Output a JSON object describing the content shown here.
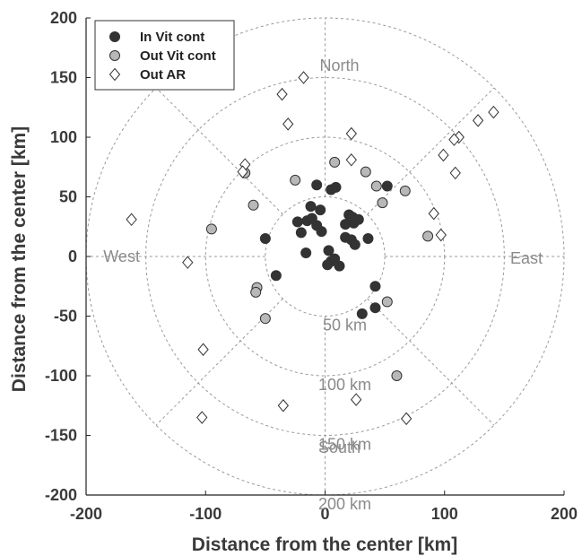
{
  "chart_data": {
    "type": "scatter",
    "title": "",
    "xlabel": "Distance from the center [km]",
    "ylabel": "Distance from the center [km]",
    "xlim": [
      -200,
      200
    ],
    "ylim": [
      -200,
      200
    ],
    "xticks": [
      -200,
      -100,
      0,
      100,
      200
    ],
    "yticks": [
      200,
      150,
      100,
      50,
      0,
      -50,
      -100,
      -150,
      -200
    ],
    "grid": false,
    "legend_position": "top-left",
    "polar_grid": {
      "ring_radii": [
        50,
        100,
        150,
        200
      ],
      "ring_labels": [
        "50 km",
        "100 km",
        "150 km",
        "200 km"
      ],
      "spoke_angles_deg": [
        0,
        45,
        90,
        135,
        180,
        225,
        270,
        315
      ],
      "directions": {
        "north": "North",
        "east": "East",
        "south": "South",
        "west": "West"
      }
    },
    "series": [
      {
        "name": "In Vit cont",
        "marker": "circle",
        "color": "#333333",
        "points": [
          [
            -7,
            60
          ],
          [
            5,
            56
          ],
          [
            9,
            58
          ],
          [
            52,
            59
          ],
          [
            -12,
            42
          ],
          [
            -4,
            39
          ],
          [
            -23,
            29
          ],
          [
            -15,
            30
          ],
          [
            -11,
            32
          ],
          [
            -7,
            26
          ],
          [
            -3,
            21
          ],
          [
            -20,
            20
          ],
          [
            17,
            27
          ],
          [
            20,
            35
          ],
          [
            24,
            28
          ],
          [
            28,
            31
          ],
          [
            23,
            33
          ],
          [
            -50,
            15
          ],
          [
            -16,
            3
          ],
          [
            3,
            5
          ],
          [
            17,
            16
          ],
          [
            22,
            14
          ],
          [
            25,
            10
          ],
          [
            36,
            15
          ],
          [
            2,
            -7
          ],
          [
            5,
            -4
          ],
          [
            8,
            -2
          ],
          [
            12,
            -8
          ],
          [
            -41,
            -16
          ],
          [
            42,
            -25
          ],
          [
            42,
            -43
          ],
          [
            31,
            -48
          ]
        ]
      },
      {
        "name": "Out Vit cont",
        "marker": "circle",
        "color": "#b8b8b8",
        "points": [
          [
            8,
            79
          ],
          [
            -67,
            70
          ],
          [
            -25,
            64
          ],
          [
            34,
            71
          ],
          [
            43,
            59
          ],
          [
            67,
            55
          ],
          [
            -60,
            43
          ],
          [
            48,
            45
          ],
          [
            -95,
            23
          ],
          [
            86,
            17
          ],
          [
            -57,
            -26
          ],
          [
            -58,
            -30
          ],
          [
            52,
            -38
          ],
          [
            -50,
            -52
          ],
          [
            60,
            -100
          ]
        ]
      },
      {
        "name": "Out AR",
        "marker": "diamond",
        "color": "#ffffff",
        "points": [
          [
            -18,
            150
          ],
          [
            -36,
            136
          ],
          [
            141,
            121
          ],
          [
            128,
            114
          ],
          [
            -31,
            111
          ],
          [
            22,
            103
          ],
          [
            112,
            100
          ],
          [
            108,
            98
          ],
          [
            99,
            85
          ],
          [
            22,
            81
          ],
          [
            -67,
            77
          ],
          [
            -69,
            71
          ],
          [
            109,
            70
          ],
          [
            91,
            36
          ],
          [
            -162,
            31
          ],
          [
            97,
            18
          ],
          [
            -115,
            -5
          ],
          [
            -102,
            -78
          ],
          [
            26,
            -120
          ],
          [
            -35,
            -125
          ],
          [
            68,
            -136
          ],
          [
            -103,
            -135
          ]
        ]
      }
    ]
  }
}
